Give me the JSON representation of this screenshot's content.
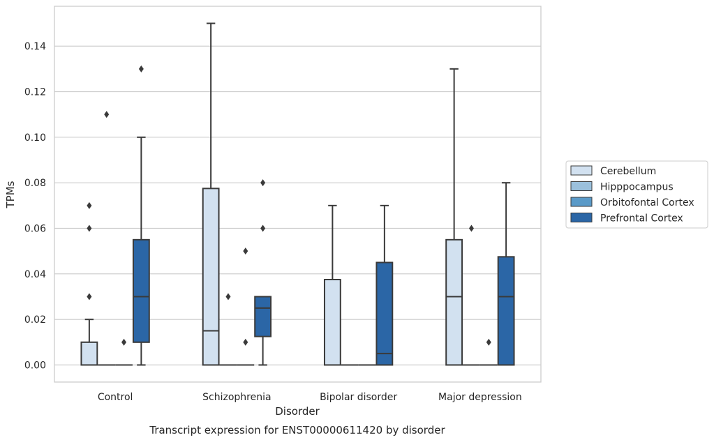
{
  "chart_data": {
    "type": "box",
    "caption": "Transcript expression for ENST00000611420 by disorder",
    "xlabel": "Disorder",
    "ylabel": "TPMs",
    "categories": [
      "Control",
      "Schizophrenia",
      "Bipolar disorder",
      "Major depression"
    ],
    "ylim": [
      -0.0075,
      0.1575
    ],
    "yticks": [
      0.0,
      0.02,
      0.04,
      0.06,
      0.08,
      0.1,
      0.12,
      0.14
    ],
    "ytick_labels": [
      "0.00",
      "0.02",
      "0.04",
      "0.06",
      "0.08",
      "0.10",
      "0.12",
      "0.14"
    ],
    "grid": "horizontal",
    "legend_position": "right",
    "series": [
      {
        "name": "Cerebellum",
        "color": "#d2e1f0",
        "boxes": [
          {
            "q1": 0.0,
            "median": 0.0,
            "q3": 0.01,
            "whislo": 0.0,
            "whishi": 0.02,
            "fliers": [
              0.03,
              0.06,
              0.07
            ]
          },
          {
            "q1": 0.0,
            "median": 0.015,
            "q3": 0.0775,
            "whislo": 0.0,
            "whishi": 0.15,
            "fliers": []
          },
          {
            "q1": 0.0,
            "median": 0.0,
            "q3": 0.0375,
            "whislo": 0.0,
            "whishi": 0.07,
            "fliers": []
          },
          {
            "q1": 0.0,
            "median": 0.03,
            "q3": 0.055,
            "whislo": 0.0,
            "whishi": 0.13,
            "fliers": []
          }
        ]
      },
      {
        "name": "Hipppocampus",
        "color": "#9bc0dc",
        "boxes": [
          {
            "q1": 0.0,
            "median": 0.0,
            "q3": 0.0,
            "whislo": 0.0,
            "whishi": 0.0,
            "fliers": [
              0.11
            ]
          },
          {
            "q1": 0.0,
            "median": 0.0,
            "q3": 0.0,
            "whislo": 0.0,
            "whishi": 0.0,
            "fliers": [
              0.03
            ]
          },
          {
            "q1": 0.0,
            "median": 0.0,
            "q3": 0.0,
            "whislo": 0.0,
            "whishi": 0.0,
            "fliers": []
          },
          {
            "q1": 0.0,
            "median": 0.0,
            "q3": 0.0,
            "whislo": 0.0,
            "whishi": 0.0,
            "fliers": [
              0.06
            ]
          }
        ]
      },
      {
        "name": "Orbitofontal Cortex",
        "color": "#5a9ac8",
        "boxes": [
          {
            "q1": 0.0,
            "median": 0.0,
            "q3": 0.0,
            "whislo": 0.0,
            "whishi": 0.0,
            "fliers": [
              0.01
            ]
          },
          {
            "q1": 0.0,
            "median": 0.0,
            "q3": 0.0,
            "whislo": 0.0,
            "whishi": 0.0,
            "fliers": [
              0.01,
              0.05
            ]
          },
          {
            "q1": 0.0,
            "median": 0.0,
            "q3": 0.0,
            "whislo": 0.0,
            "whishi": 0.0,
            "fliers": []
          },
          {
            "q1": 0.0,
            "median": 0.0,
            "q3": 0.0,
            "whislo": 0.0,
            "whishi": 0.0,
            "fliers": [
              0.01
            ]
          }
        ]
      },
      {
        "name": "Prefrontal Cortex",
        "color": "#2b66a6",
        "boxes": [
          {
            "q1": 0.01,
            "median": 0.03,
            "q3": 0.055,
            "whislo": 0.0,
            "whishi": 0.1,
            "fliers": [
              0.13
            ]
          },
          {
            "q1": 0.0125,
            "median": 0.025,
            "q3": 0.03,
            "whislo": 0.0,
            "whishi": 0.03,
            "fliers": [
              0.06,
              0.08
            ]
          },
          {
            "q1": 0.0,
            "median": 0.005,
            "q3": 0.045,
            "whislo": 0.0,
            "whishi": 0.07,
            "fliers": []
          },
          {
            "q1": 0.0,
            "median": 0.03,
            "q3": 0.0475,
            "whislo": 0.0,
            "whishi": 0.08,
            "fliers": []
          }
        ]
      }
    ]
  }
}
